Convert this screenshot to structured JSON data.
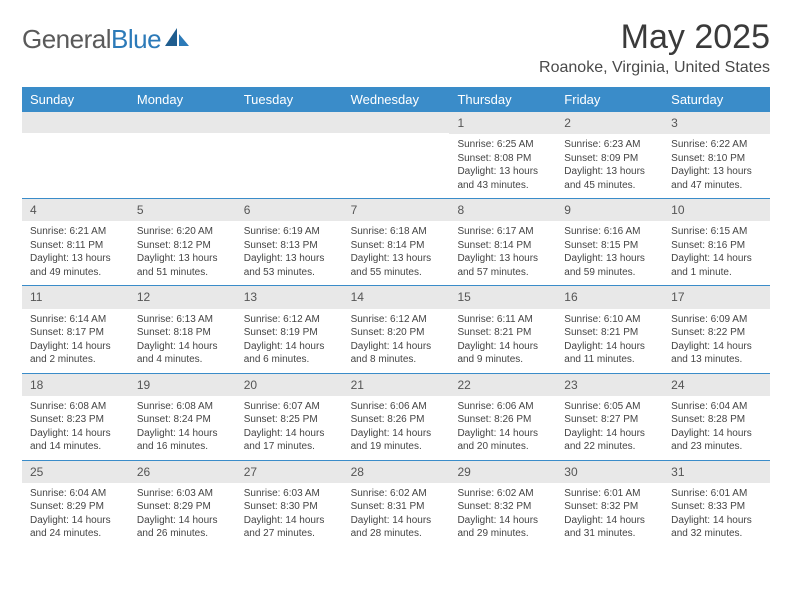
{
  "logo": {
    "text_general": "General",
    "text_blue": "Blue"
  },
  "title": "May 2025",
  "location": "Roanoke, Virginia, United States",
  "colors": {
    "header_bg": "#3a8cc9",
    "header_text": "#ffffff",
    "daynum_bg": "#e8e8e8",
    "divider": "#3a8cc9",
    "logo_gray": "#5a5a5a",
    "logo_blue": "#2c7ab8"
  },
  "day_names": [
    "Sunday",
    "Monday",
    "Tuesday",
    "Wednesday",
    "Thursday",
    "Friday",
    "Saturday"
  ],
  "weeks": [
    [
      null,
      null,
      null,
      null,
      {
        "n": "1",
        "r": "6:25 AM",
        "s": "8:08 PM",
        "d": "13 hours and 43 minutes."
      },
      {
        "n": "2",
        "r": "6:23 AM",
        "s": "8:09 PM",
        "d": "13 hours and 45 minutes."
      },
      {
        "n": "3",
        "r": "6:22 AM",
        "s": "8:10 PM",
        "d": "13 hours and 47 minutes."
      }
    ],
    [
      {
        "n": "4",
        "r": "6:21 AM",
        "s": "8:11 PM",
        "d": "13 hours and 49 minutes."
      },
      {
        "n": "5",
        "r": "6:20 AM",
        "s": "8:12 PM",
        "d": "13 hours and 51 minutes."
      },
      {
        "n": "6",
        "r": "6:19 AM",
        "s": "8:13 PM",
        "d": "13 hours and 53 minutes."
      },
      {
        "n": "7",
        "r": "6:18 AM",
        "s": "8:14 PM",
        "d": "13 hours and 55 minutes."
      },
      {
        "n": "8",
        "r": "6:17 AM",
        "s": "8:14 PM",
        "d": "13 hours and 57 minutes."
      },
      {
        "n": "9",
        "r": "6:16 AM",
        "s": "8:15 PM",
        "d": "13 hours and 59 minutes."
      },
      {
        "n": "10",
        "r": "6:15 AM",
        "s": "8:16 PM",
        "d": "14 hours and 1 minute."
      }
    ],
    [
      {
        "n": "11",
        "r": "6:14 AM",
        "s": "8:17 PM",
        "d": "14 hours and 2 minutes."
      },
      {
        "n": "12",
        "r": "6:13 AM",
        "s": "8:18 PM",
        "d": "14 hours and 4 minutes."
      },
      {
        "n": "13",
        "r": "6:12 AM",
        "s": "8:19 PM",
        "d": "14 hours and 6 minutes."
      },
      {
        "n": "14",
        "r": "6:12 AM",
        "s": "8:20 PM",
        "d": "14 hours and 8 minutes."
      },
      {
        "n": "15",
        "r": "6:11 AM",
        "s": "8:21 PM",
        "d": "14 hours and 9 minutes."
      },
      {
        "n": "16",
        "r": "6:10 AM",
        "s": "8:21 PM",
        "d": "14 hours and 11 minutes."
      },
      {
        "n": "17",
        "r": "6:09 AM",
        "s": "8:22 PM",
        "d": "14 hours and 13 minutes."
      }
    ],
    [
      {
        "n": "18",
        "r": "6:08 AM",
        "s": "8:23 PM",
        "d": "14 hours and 14 minutes."
      },
      {
        "n": "19",
        "r": "6:08 AM",
        "s": "8:24 PM",
        "d": "14 hours and 16 minutes."
      },
      {
        "n": "20",
        "r": "6:07 AM",
        "s": "8:25 PM",
        "d": "14 hours and 17 minutes."
      },
      {
        "n": "21",
        "r": "6:06 AM",
        "s": "8:26 PM",
        "d": "14 hours and 19 minutes."
      },
      {
        "n": "22",
        "r": "6:06 AM",
        "s": "8:26 PM",
        "d": "14 hours and 20 minutes."
      },
      {
        "n": "23",
        "r": "6:05 AM",
        "s": "8:27 PM",
        "d": "14 hours and 22 minutes."
      },
      {
        "n": "24",
        "r": "6:04 AM",
        "s": "8:28 PM",
        "d": "14 hours and 23 minutes."
      }
    ],
    [
      {
        "n": "25",
        "r": "6:04 AM",
        "s": "8:29 PM",
        "d": "14 hours and 24 minutes."
      },
      {
        "n": "26",
        "r": "6:03 AM",
        "s": "8:29 PM",
        "d": "14 hours and 26 minutes."
      },
      {
        "n": "27",
        "r": "6:03 AM",
        "s": "8:30 PM",
        "d": "14 hours and 27 minutes."
      },
      {
        "n": "28",
        "r": "6:02 AM",
        "s": "8:31 PM",
        "d": "14 hours and 28 minutes."
      },
      {
        "n": "29",
        "r": "6:02 AM",
        "s": "8:32 PM",
        "d": "14 hours and 29 minutes."
      },
      {
        "n": "30",
        "r": "6:01 AM",
        "s": "8:32 PM",
        "d": "14 hours and 31 minutes."
      },
      {
        "n": "31",
        "r": "6:01 AM",
        "s": "8:33 PM",
        "d": "14 hours and 32 minutes."
      }
    ]
  ],
  "labels": {
    "sunrise": "Sunrise:",
    "sunset": "Sunset:",
    "daylight": "Daylight:"
  }
}
